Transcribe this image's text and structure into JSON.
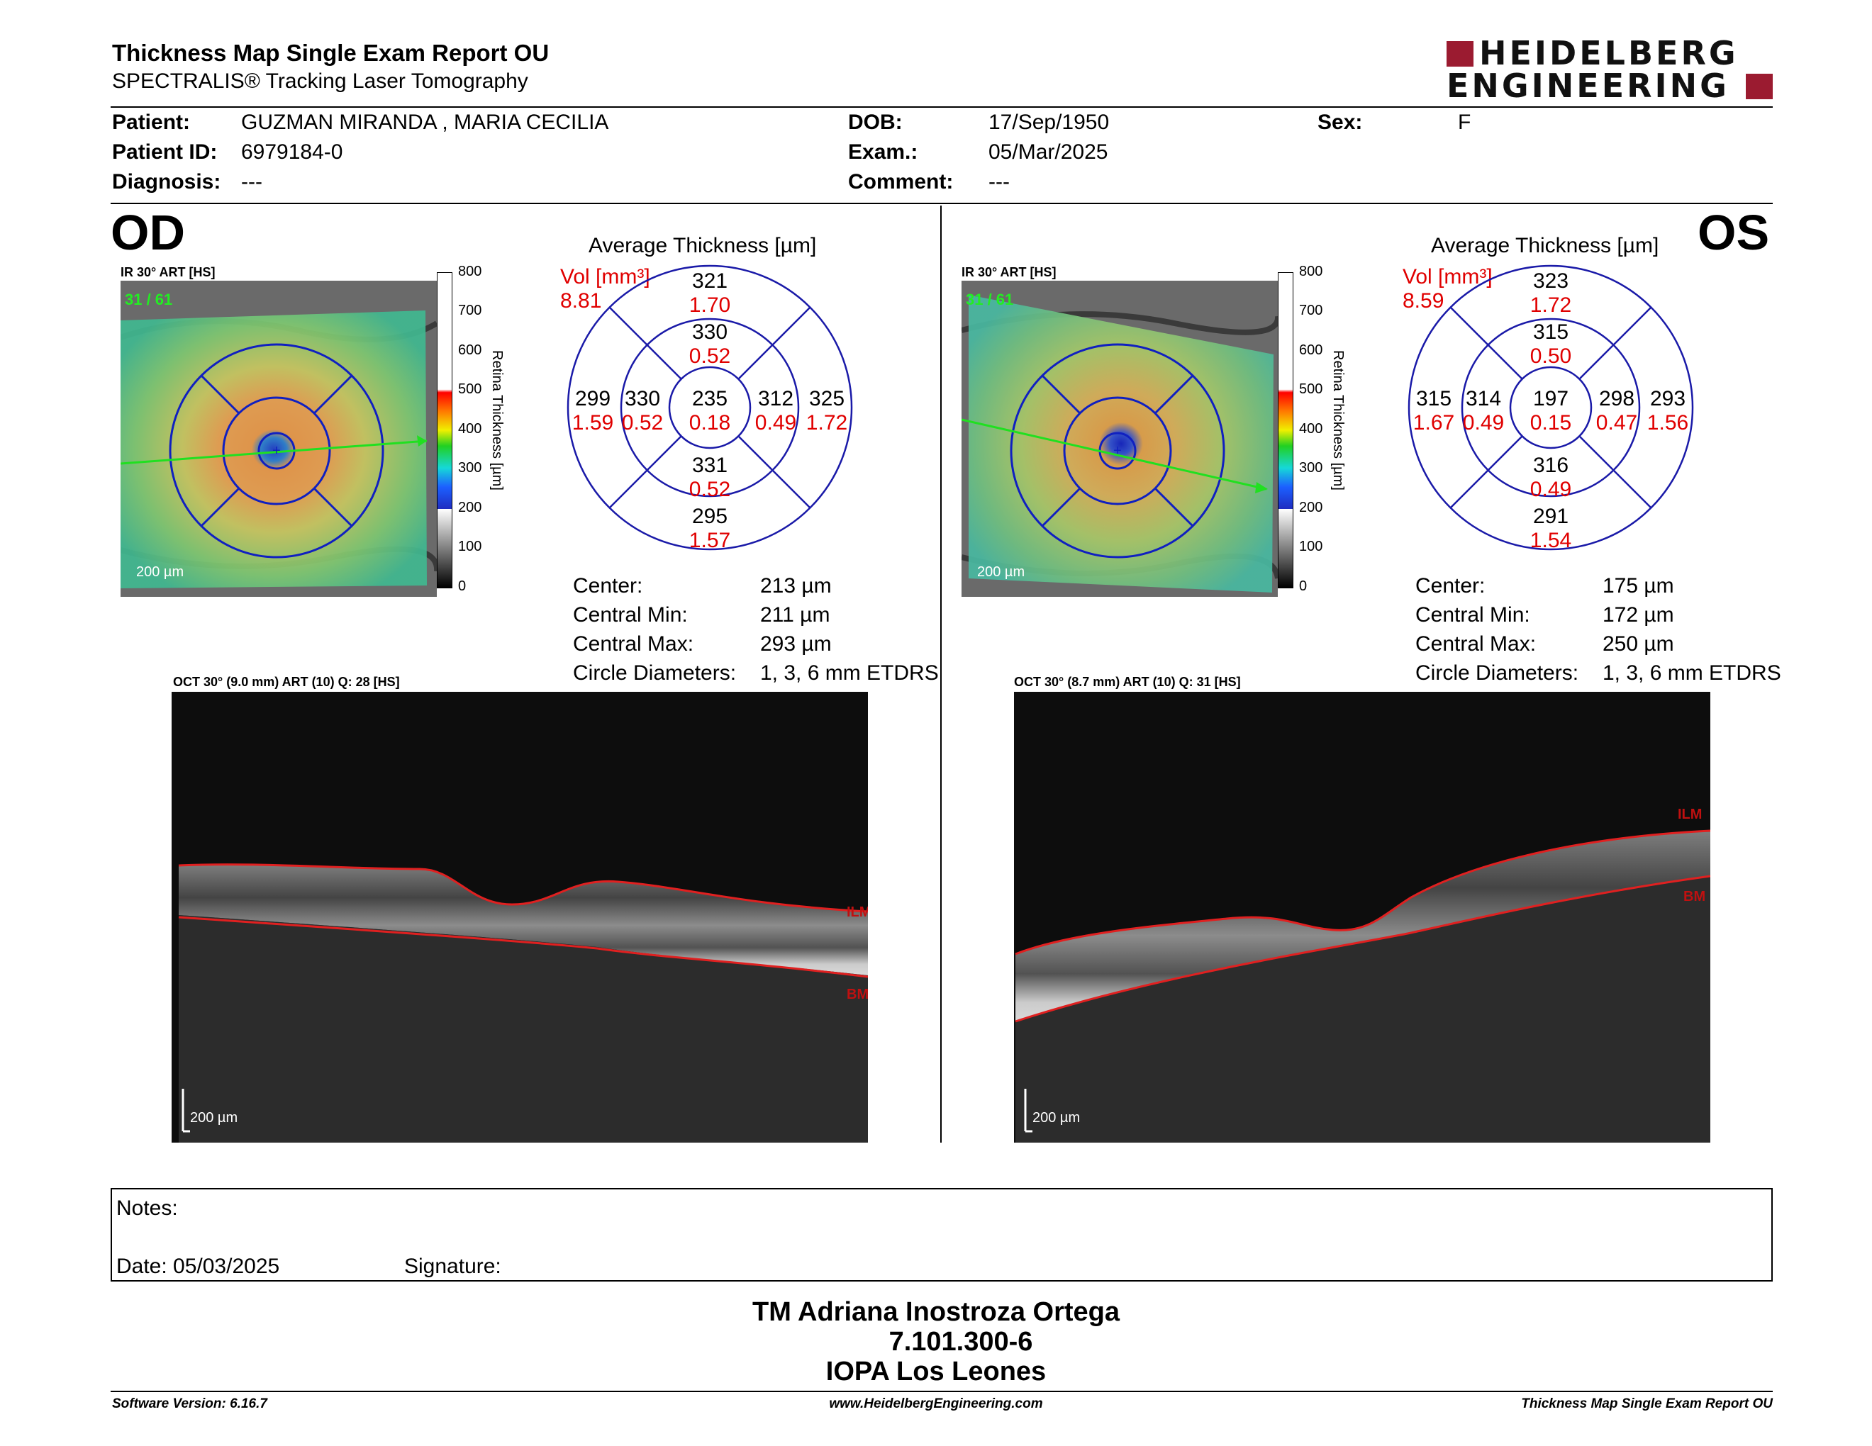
{
  "header": {
    "title": "Thickness Map Single Exam Report OU",
    "subtitle": "SPECTRALIS® Tracking Laser Tomography",
    "logo_line1": "HEIDELBERG",
    "logo_line2": "ENGINEERING",
    "brand_color": "#9b1b30"
  },
  "patient": {
    "patient_label": "Patient:",
    "patient_value": "GUZMAN MIRANDA , MARIA CECILIA",
    "id_label": "Patient ID:",
    "id_value": "6979184-0",
    "diagnosis_label": "Diagnosis:",
    "diagnosis_value": "---",
    "dob_label": "DOB:",
    "dob_value": "17/Sep/1950",
    "exam_label": "Exam.:",
    "exam_value": "05/Mar/2025",
    "comment_label": "Comment:",
    "comment_value": "---",
    "sex_label": "Sex:",
    "sex_value": "F"
  },
  "od": {
    "eye": "OD",
    "ir_label": "IR 30° ART [HS]",
    "frames": "31 / 61",
    "scale": "200 µm",
    "avg_title": "Average Thickness [µm]",
    "vol_label": "Vol [mm³]",
    "vol_total": "8.81",
    "grid": {
      "outer_sup": [
        "321",
        "1.70"
      ],
      "inner_sup": [
        "330",
        "0.52"
      ],
      "outer_temp": [
        "299",
        "1.59"
      ],
      "inner_temp": [
        "330",
        "0.52"
      ],
      "center": [
        "235",
        "0.18"
      ],
      "inner_nas": [
        "312",
        "0.49"
      ],
      "outer_nas": [
        "325",
        "1.72"
      ],
      "inner_inf": [
        "331",
        "0.52"
      ],
      "outer_inf": [
        "295",
        "1.57"
      ]
    },
    "stats": [
      {
        "label": "Center:",
        "value": "213 µm"
      },
      {
        "label": "Central Min:",
        "value": "211 µm"
      },
      {
        "label": "Central Max:",
        "value": "293 µm"
      },
      {
        "label": "Circle Diameters:",
        "value": "1, 3, 6 mm ETDRS"
      }
    ],
    "oct_label": "OCT 30° (9.0 mm) ART (10) Q: 28 [HS]",
    "oct_scale": "200 µm",
    "ilm": "ILM",
    "bm": "BM"
  },
  "os": {
    "eye": "OS",
    "ir_label": "IR 30° ART [HS]",
    "frames": "31 / 61",
    "scale": "200 µm",
    "avg_title": "Average Thickness [µm]",
    "vol_label": "Vol [mm³]",
    "vol_total": "8.59",
    "grid": {
      "outer_sup": [
        "323",
        "1.72"
      ],
      "inner_sup": [
        "315",
        "0.50"
      ],
      "outer_temp": [
        "315",
        "1.67"
      ],
      "inner_temp": [
        "314",
        "0.49"
      ],
      "center": [
        "197",
        "0.15"
      ],
      "inner_nas": [
        "298",
        "0.47"
      ],
      "outer_nas": [
        "293",
        "1.56"
      ],
      "inner_inf": [
        "316",
        "0.49"
      ],
      "outer_inf": [
        "291",
        "1.54"
      ]
    },
    "stats": [
      {
        "label": "Center:",
        "value": "175 µm"
      },
      {
        "label": "Central Min:",
        "value": "172 µm"
      },
      {
        "label": "Central Max:",
        "value": "250 µm"
      },
      {
        "label": "Circle Diameters:",
        "value": "1, 3, 6 mm ETDRS"
      }
    ],
    "oct_label": "OCT 30° (8.7 mm) ART (10) Q: 31 [HS]",
    "oct_scale": "200 µm",
    "ilm": "ILM",
    "bm": "BM"
  },
  "colorbar": {
    "ticks": [
      "800",
      "700",
      "600",
      "500",
      "400",
      "300",
      "200",
      "100",
      "0"
    ],
    "title": "Retina Thickness [µm]"
  },
  "notes": {
    "notes_label": "Notes:",
    "date_label": "Date: 05/03/2025",
    "signature_label": "Signature:"
  },
  "signature_block": {
    "name": "TM Adriana Inostroza Ortega",
    "id": "7.101.300-6",
    "place": "IOPA Los Leones"
  },
  "footer": {
    "software": "Software Version: 6.16.7",
    "website": "www.HeidelbergEngineering.com",
    "report": "Thickness Map Single Exam Report OU"
  }
}
